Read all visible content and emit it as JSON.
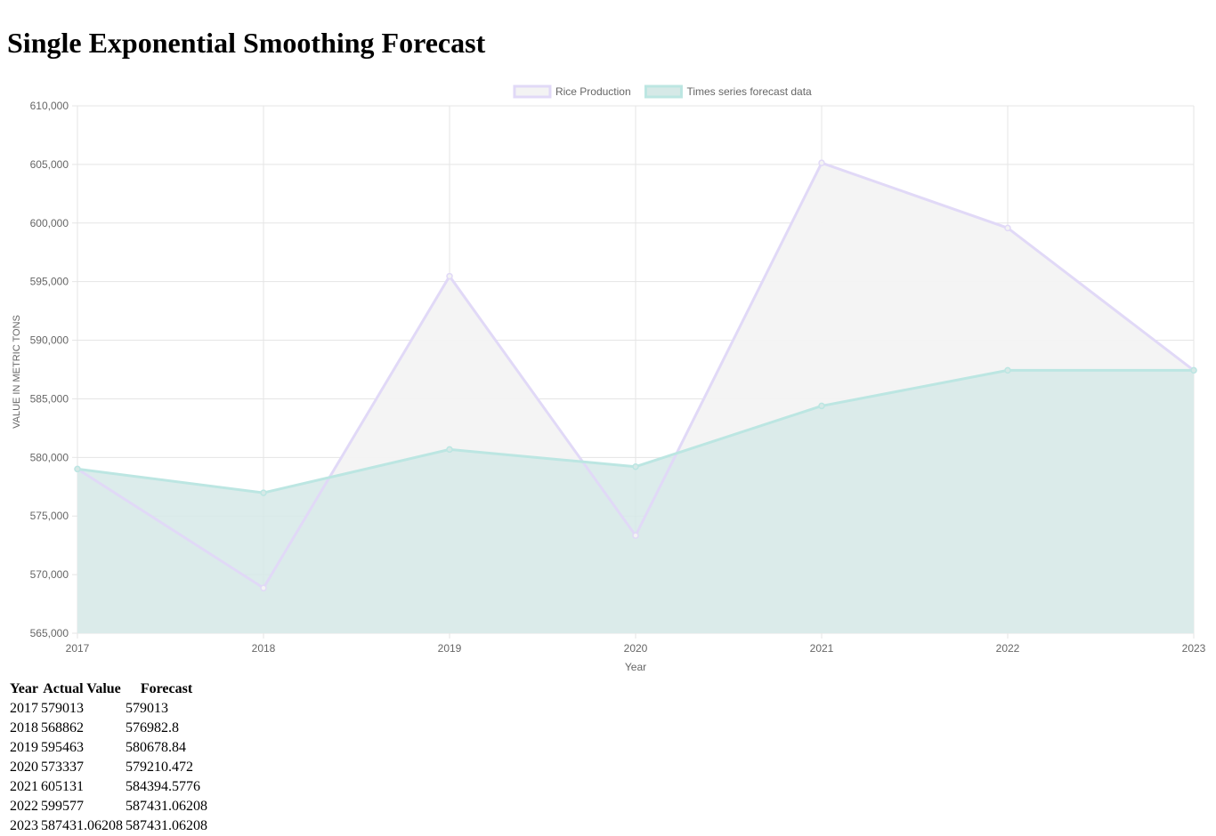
{
  "page": {
    "title": "Single Exponential Smoothing Forecast"
  },
  "chart_data": {
    "type": "area",
    "title": "",
    "xlabel": "Year",
    "ylabel": "VALUE IN METRIC TONS",
    "categories": [
      "2017",
      "2018",
      "2019",
      "2020",
      "2021",
      "2022",
      "2023"
    ],
    "ylim": [
      565000,
      610000
    ],
    "yticks": [
      "565,000",
      "570,000",
      "575,000",
      "580,000",
      "585,000",
      "590,000",
      "595,000",
      "600,000",
      "605,000",
      "610,000"
    ],
    "grid": true,
    "legend_position": "top-center",
    "series": [
      {
        "name": "Rice Production",
        "values": [
          579013,
          568862,
          595463,
          573337,
          605131,
          599577,
          587431.06208
        ],
        "line_color": "#e1d9f7",
        "fill_color": "#f3f3f3"
      },
      {
        "name": "Times series forecast data",
        "values": [
          579013,
          576982.8,
          580678.84,
          579210.472,
          584394.5776,
          587431.06208,
          587431.06208
        ],
        "line_color": "#bce6e2",
        "fill_color": "#d6e9e7"
      }
    ]
  },
  "table": {
    "headers": [
      "Year",
      "Actual Value",
      "Forecast"
    ],
    "rows": [
      [
        "2017",
        "579013",
        "579013"
      ],
      [
        "2018",
        "568862",
        "576982.8"
      ],
      [
        "2019",
        "595463",
        "580678.84"
      ],
      [
        "2020",
        "573337",
        "579210.472"
      ],
      [
        "2021",
        "605131",
        "584394.5776"
      ],
      [
        "2022",
        "599577",
        "587431.06208"
      ],
      [
        "2023",
        "587431.06208",
        "587431.06208"
      ]
    ]
  }
}
